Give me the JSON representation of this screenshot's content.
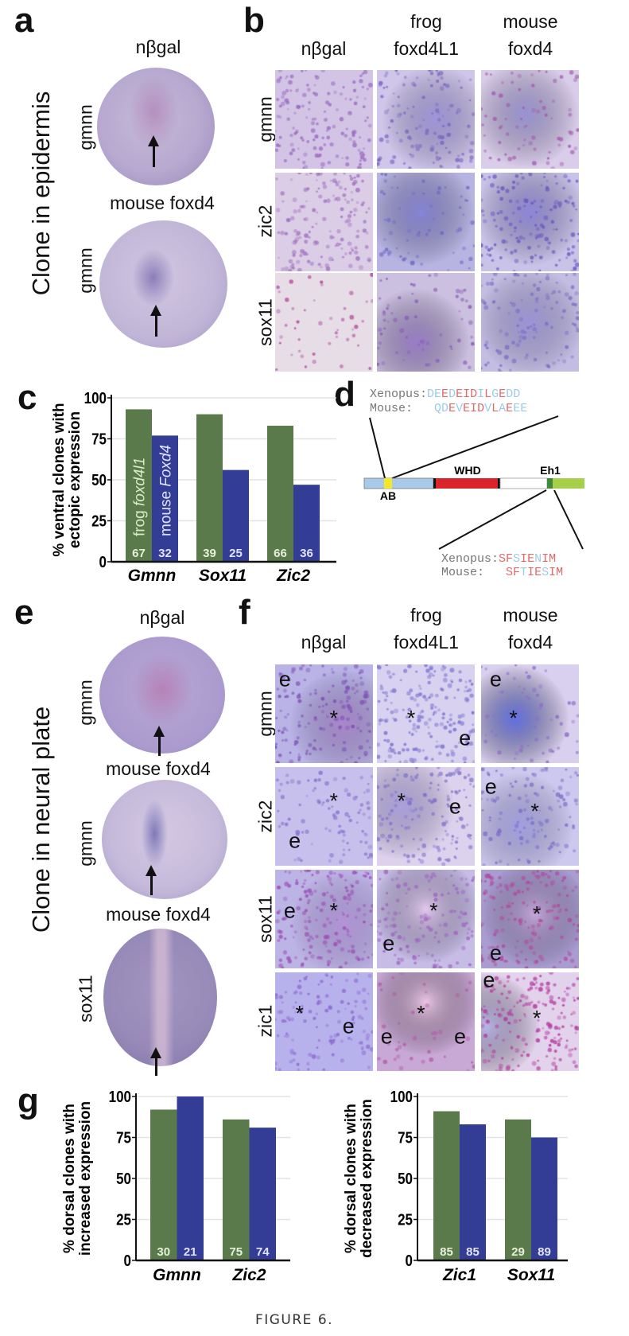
{
  "colors": {
    "frog": "#5b7a4b",
    "mouse": "#333d95",
    "grid": "#e3e3e3",
    "seq_identical": "#e06a6a",
    "seq_different": "#9ccbea",
    "ab_domain": "#f5e82a",
    "nterm": "#a9c9ea",
    "whd": "#d9252a",
    "eh1": "#3e8a3a",
    "cterm": "#a6cf4a"
  },
  "panels": {
    "a": {
      "letter": "a",
      "side_title": "Clone in epidermis",
      "embryos": [
        {
          "title": "nβgal",
          "probe": "gmnn",
          "arrow": "arrow-icon"
        },
        {
          "title": "mouse foxd4",
          "probe": "gmnn",
          "arrow": "arrow-icon"
        }
      ]
    },
    "b": {
      "letter": "b",
      "columns": [
        {
          "line1": "",
          "line2": "nβgal"
        },
        {
          "line1": "frog",
          "line2": "foxd4L1"
        },
        {
          "line1": "mouse",
          "line2": "foxd4"
        }
      ],
      "rows": [
        "gmnn",
        "zic2",
        "sox11"
      ]
    },
    "d": {
      "letter": "d",
      "top": {
        "xenopus_name": "Xenopus:",
        "xenopus_seq": "DEEDEIDILGEDD",
        "xenopus_mask": "bbrbrrrbrbrbb",
        "mouse_name": "Mouse:   ",
        "mouse_seq": "QDEVEIDVLAEEE",
        "mouse_mask": "bbrbrrrbrbrbb"
      },
      "bottom": {
        "xenopus_name": "Xenopus:",
        "xenopus_seq": "SFSIENIM",
        "xenopus_mask": "rrbrrbrr",
        "mouse_name": "Mouse:   ",
        "mouse_seq": "SFTIESIM",
        "mouse_mask": "rrbrrbrr"
      },
      "domains": {
        "ab": "AB",
        "whd": "WHD",
        "eh1": "Eh1"
      }
    },
    "e": {
      "letter": "e",
      "side_title": "Clone in neural plate",
      "embryos": [
        {
          "title": "nβgal",
          "probe": "gmnn",
          "arrow": "arrow-icon"
        },
        {
          "title": "mouse foxd4",
          "probe": "gmnn",
          "arrow": "arrow-icon"
        },
        {
          "title": "mouse foxd4",
          "probe": "sox11",
          "arrow": "arrow-icon"
        }
      ]
    },
    "f": {
      "letter": "f",
      "columns": [
        {
          "line1": "",
          "line2": "nβgal"
        },
        {
          "line1": "frog",
          "line2": "foxd4L1"
        },
        {
          "line1": "mouse",
          "line2": "foxd4"
        }
      ],
      "rows": [
        "gmnn",
        "zic2",
        "sox11",
        "zic1"
      ],
      "marks": [
        [
          [
            "e",
            "*"
          ],
          [
            "*",
            "e"
          ],
          [
            "e",
            "*"
          ]
        ],
        [
          [
            "*",
            "e"
          ],
          [
            "*",
            "e"
          ],
          [
            "e",
            "*"
          ]
        ],
        [
          [
            "e",
            "*"
          ],
          [
            "*",
            "e"
          ],
          [
            "*",
            "e"
          ]
        ],
        [
          [
            "*",
            "e"
          ],
          [
            "*",
            "e",
            "e"
          ],
          [
            "e",
            "*"
          ]
        ]
      ]
    },
    "g": {
      "letter": "g"
    }
  },
  "chart_data": [
    {
      "id": "c",
      "letter": "c",
      "type": "bar",
      "ylabel_line1": "% ventral clones with",
      "ylabel_line2": "ectopic expression",
      "categories": [
        "Gmnn",
        "Sox11",
        "Zic2"
      ],
      "ylim": [
        0,
        100
      ],
      "yticks": [
        "0",
        "25",
        "50",
        "75",
        "100"
      ],
      "grid": true,
      "series": [
        {
          "name_plain": "frog ",
          "name_italic": "foxd4l1",
          "values": [
            93,
            90,
            83
          ],
          "n": [
            "67",
            "39",
            "66"
          ]
        },
        {
          "name_plain": "mouse ",
          "name_italic": "Foxd4",
          "values": [
            77,
            56,
            47
          ],
          "n": [
            "32",
            "25",
            "36"
          ]
        }
      ]
    },
    {
      "id": "g1",
      "type": "bar",
      "ylabel_line1": "% dorsal clones with",
      "ylabel_line2": "increased expression",
      "categories": [
        "Gmnn",
        "Zic2"
      ],
      "ylim": [
        0,
        100
      ],
      "yticks": [
        "0",
        "25",
        "50",
        "75",
        "100"
      ],
      "grid": true,
      "series": [
        {
          "values": [
            92,
            86
          ],
          "n": [
            "30",
            "75"
          ]
        },
        {
          "values": [
            100,
            81
          ],
          "n": [
            "21",
            "74"
          ]
        }
      ]
    },
    {
      "id": "g2",
      "type": "bar",
      "ylabel_line1": "% dorsal clones with",
      "ylabel_line2": "decreased expression",
      "categories": [
        "Zic1",
        "Sox11"
      ],
      "ylim": [
        0,
        100
      ],
      "yticks": [
        "0",
        "25",
        "50",
        "75",
        "100"
      ],
      "grid": true,
      "series": [
        {
          "values": [
            91,
            86
          ],
          "n": [
            "85",
            "29"
          ]
        },
        {
          "values": [
            83,
            75
          ],
          "n": [
            "85",
            "89"
          ]
        }
      ]
    }
  ],
  "caption": "FIGURE 6."
}
